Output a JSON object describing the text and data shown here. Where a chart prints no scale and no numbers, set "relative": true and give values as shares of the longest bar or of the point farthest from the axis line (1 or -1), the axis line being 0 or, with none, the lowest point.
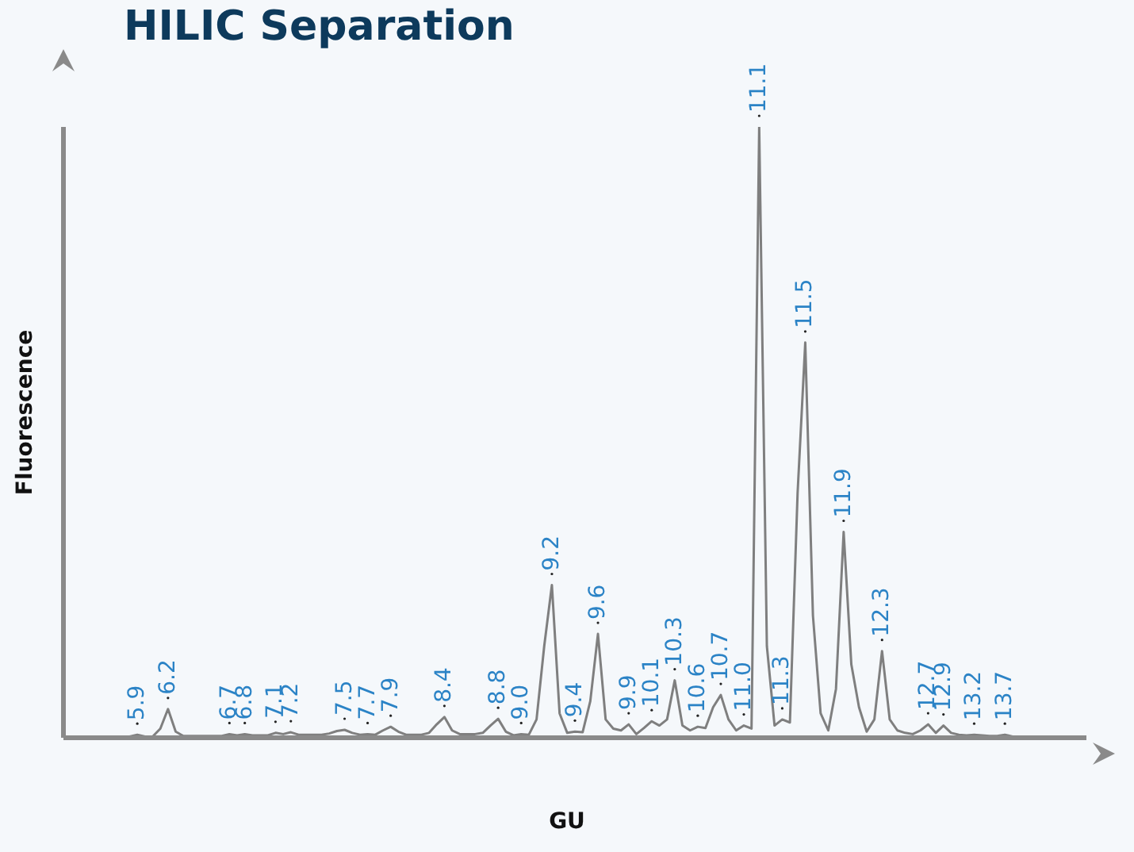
{
  "chart_data": {
    "type": "line",
    "title": "HILIC Separation",
    "xlabel": "GU",
    "ylabel": "Fluorescence",
    "relative": true,
    "grid": false,
    "legend": false,
    "marker": "none",
    "line_style": "solid",
    "categories": [
      null,
      null,
      null,
      null,
      null,
      null,
      null,
      null,
      null,
      null,
      null,
      null,
      null,
      null,
      null,
      null,
      null,
      null,
      null,
      null,
      null,
      null,
      null,
      null,
      null,
      null,
      null,
      null,
      null,
      null,
      null,
      null,
      null,
      null,
      null,
      null,
      null,
      null,
      null,
      null,
      null,
      null,
      null,
      null,
      null,
      null,
      null,
      null,
      null,
      null,
      null,
      null,
      null,
      null,
      null,
      null,
      null,
      null,
      null,
      null,
      null,
      null,
      null,
      null,
      null,
      null,
      null,
      null,
      null,
      null,
      null,
      null,
      null,
      null,
      null,
      null,
      null,
      null,
      null,
      null,
      null,
      null,
      null,
      null,
      null,
      null,
      null,
      null,
      null,
      null,
      null,
      null,
      null,
      null,
      null,
      null,
      null,
      null,
      null,
      null,
      null,
      null,
      null,
      null,
      null,
      null,
      null,
      null,
      null,
      null,
      null,
      null,
      null,
      null,
      null,
      null,
      null,
      null,
      null,
      null,
      null,
      null,
      null,
      null,
      null,
      null,
      null,
      null,
      null,
      null,
      null,
      null,
      null
    ],
    "series": [
      {
        "color": "#7f7f7f",
        "values": [
          0.002,
          0.002,
          0.002,
          0.002,
          0.002,
          0.002,
          0.002,
          0.002,
          0.002,
          0.005,
          0.002,
          0.002,
          0.015,
          0.047,
          0.01,
          0.003,
          0.003,
          0.003,
          0.003,
          0.003,
          0.003,
          0.006,
          0.004,
          0.006,
          0.004,
          0.004,
          0.004,
          0.008,
          0.006,
          0.009,
          0.005,
          0.005,
          0.005,
          0.005,
          0.007,
          0.011,
          0.013,
          0.008,
          0.005,
          0.006,
          0.005,
          0.012,
          0.018,
          0.01,
          0.005,
          0.005,
          0.005,
          0.008,
          0.022,
          0.034,
          0.012,
          0.006,
          0.006,
          0.006,
          0.008,
          0.02,
          0.031,
          0.01,
          0.004,
          0.006,
          0.005,
          0.03,
          0.15,
          0.25,
          0.04,
          0.008,
          0.01,
          0.009,
          0.06,
          0.17,
          0.03,
          0.015,
          0.012,
          0.022,
          0.006,
          0.016,
          0.027,
          0.02,
          0.03,
          0.094,
          0.02,
          0.012,
          0.018,
          0.016,
          0.05,
          0.07,
          0.03,
          0.012,
          0.02,
          0.015,
          1.0,
          0.15,
          0.02,
          0.03,
          0.025,
          0.4,
          0.647,
          0.2,
          0.04,
          0.012,
          0.08,
          0.337,
          0.12,
          0.05,
          0.01,
          0.03,
          0.142,
          0.03,
          0.012,
          0.008,
          0.006,
          0.012,
          0.022,
          0.008,
          0.02,
          0.008,
          0.005,
          0.004,
          0.005,
          0.004,
          0.003,
          0.003,
          0.005,
          0.002,
          0,
          0,
          0,
          0,
          0,
          0,
          0,
          0,
          0
        ]
      }
    ],
    "annotations": [
      "5.9",
      "6.2",
      "6.7",
      "6.8",
      "7.1",
      "7.2",
      "7.5",
      "7.7",
      "7.9",
      "8.4",
      "8.8",
      "9.0",
      "9.2",
      "9.4",
      "9.6",
      "9.9",
      "10.1",
      "10.3",
      "10.6",
      "10.7",
      "11.0",
      "11.1",
      "11.3",
      "11.5",
      "11.9",
      "12.3",
      "12.7",
      "12.9",
      "13.2",
      "13.7"
    ]
  }
}
